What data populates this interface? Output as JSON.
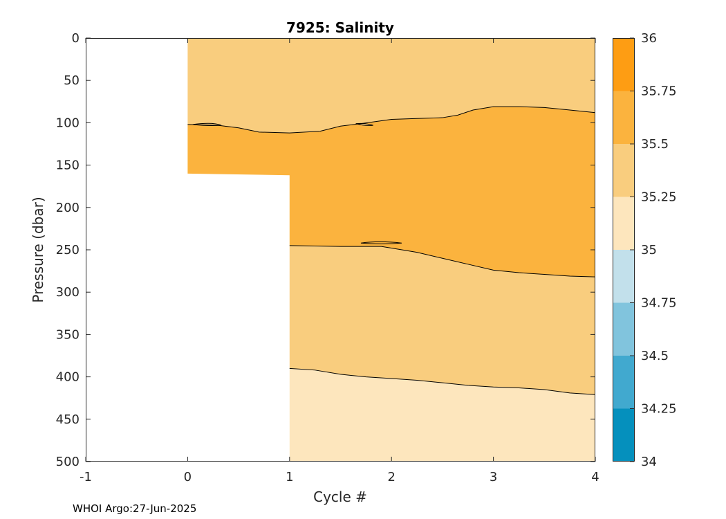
{
  "chart_data": {
    "type": "contour",
    "title": "7925:  Salinity",
    "xlabel": "Cycle #",
    "ylabel": "Pressure (dbar)",
    "xlim": [
      -1,
      4
    ],
    "ylim": [
      0,
      500
    ],
    "y_reversed": true,
    "x_ticks": [
      "-1",
      "0",
      "1",
      "2",
      "3",
      "4"
    ],
    "y_ticks": [
      "0",
      "50",
      "100",
      "150",
      "200",
      "250",
      "300",
      "350",
      "400",
      "450",
      "500"
    ],
    "profiles": [
      {
        "cycle": 0,
        "max_pressure": 160
      },
      {
        "cycle": 1,
        "max_pressure": 500
      },
      {
        "cycle": 2,
        "max_pressure": 500
      },
      {
        "cycle": 3,
        "max_pressure": 500
      },
      {
        "cycle": 4,
        "max_pressure": 500
      }
    ],
    "contours": [
      {
        "level": 35.5,
        "points": [
          [
            0,
            102
          ],
          [
            0.3,
            103
          ],
          [
            0.5,
            106
          ],
          [
            0.7,
            111
          ],
          [
            1.0,
            112
          ],
          [
            1.3,
            110
          ],
          [
            1.5,
            104
          ],
          [
            1.7,
            101
          ],
          [
            2.0,
            96
          ],
          [
            2.25,
            95
          ],
          [
            2.5,
            94
          ],
          [
            2.65,
            91
          ],
          [
            2.8,
            85
          ],
          [
            3.0,
            81
          ],
          [
            3.25,
            81
          ],
          [
            3.5,
            82
          ],
          [
            3.75,
            85
          ],
          [
            4.0,
            88
          ]
        ]
      },
      {
        "level": 35.5,
        "points": [
          [
            1.0,
            245
          ],
          [
            1.5,
            246
          ],
          [
            1.9,
            246
          ],
          [
            2.0,
            248
          ],
          [
            2.25,
            253
          ],
          [
            2.5,
            260
          ],
          [
            2.75,
            267
          ],
          [
            3.0,
            274
          ],
          [
            3.25,
            277
          ],
          [
            3.5,
            279
          ],
          [
            3.75,
            281
          ],
          [
            4.0,
            282
          ]
        ]
      },
      {
        "level": 35.25,
        "points": [
          [
            1.0,
            390
          ],
          [
            1.25,
            392
          ],
          [
            1.5,
            397
          ],
          [
            1.75,
            400
          ],
          [
            2.0,
            402
          ],
          [
            2.25,
            404
          ],
          [
            2.5,
            407
          ],
          [
            2.75,
            410
          ],
          [
            3.0,
            412
          ],
          [
            3.25,
            413
          ],
          [
            3.5,
            415
          ],
          [
            3.75,
            419
          ],
          [
            4.0,
            421
          ]
        ]
      }
    ],
    "fill_bands": {
      "above_upper_contour": 35.375,
      "between_upper_and_lower_contours": 35.625,
      "between_lower_and_deep_contour": 35.375,
      "below_deep_contour": 35.125
    },
    "colorbar": {
      "levels": [
        34,
        34.25,
        34.5,
        34.75,
        35,
        35.25,
        35.5,
        35.75,
        36
      ],
      "labels": [
        "34",
        "34.25",
        "34.5",
        "34.75",
        "35",
        "35.25",
        "35.5",
        "35.75",
        "36"
      ],
      "colors": [
        "#0590bd",
        "#41a9cf",
        "#81c4dd",
        "#c2e0eb",
        "#fde6bd",
        "#f9cd7e",
        "#fbb33e",
        "#fe9d13"
      ]
    },
    "grid": false,
    "legend": "colorbar-right"
  },
  "credit": "WHOI Argo:27-Jun-2025"
}
